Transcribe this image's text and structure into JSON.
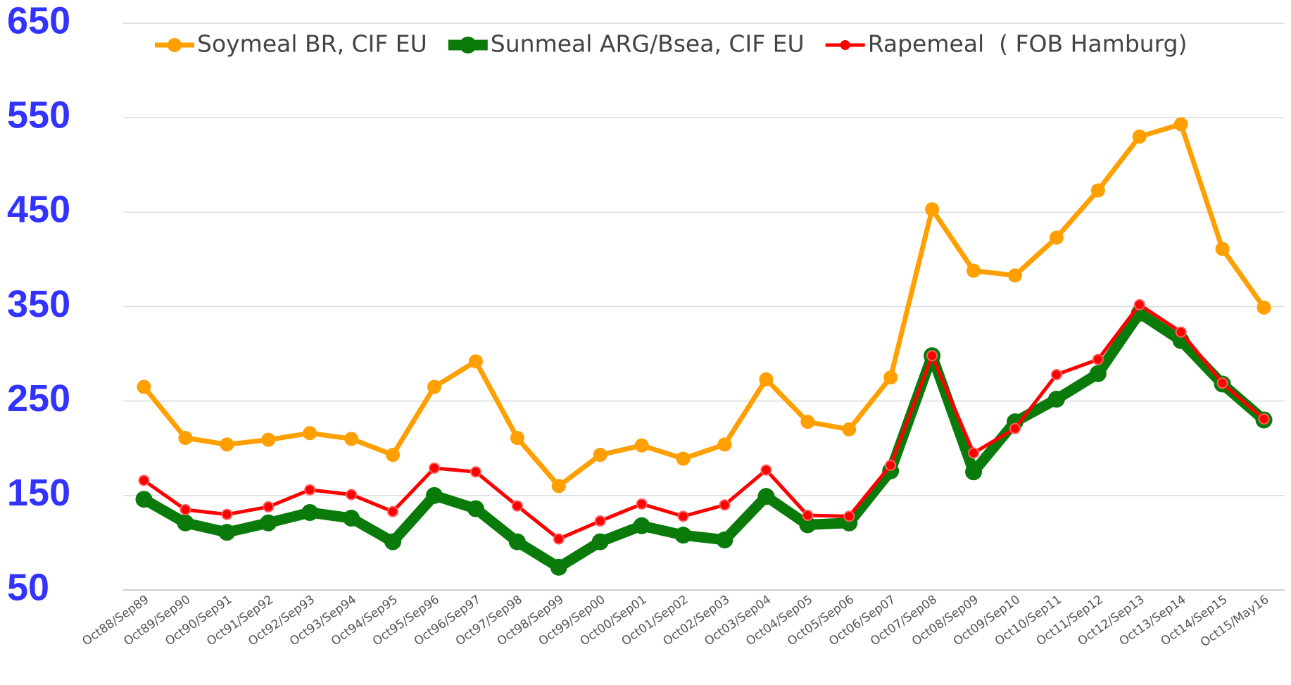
{
  "chart_data": {
    "type": "line",
    "categories": [
      "Oct88/Sep89",
      "Oct89/Sep90",
      "Oct90/Sep91",
      "Oct91/Sep92",
      "Oct92/Sep93",
      "Oct93/Sep94",
      "Oct94/Sep95",
      "Oct95/Sep96",
      "Oct96/Sep97",
      "Oct97/Sep98",
      "Oct98/Sep99",
      "Oct99/Sep00",
      "Oct00/Sep01",
      "Oct01/Sep02",
      "Oct02/Sep03",
      "Oct03/Sep04",
      "Oct04/Sep05",
      "Oct05/Sep06",
      "Oct06/Sep07",
      "Oct07/Sep08",
      "Oct08/Sep09",
      "Oct09/Sep10",
      "Oct10/Sep11",
      "Oct11/Sep12",
      "Oct12/Sep13",
      "Oct13/Sep14",
      "Oct14/Sep15",
      "Oct15/May16"
    ],
    "series": [
      {
        "name": "Soymeal BR, CIF EU",
        "color": "#ff9f00",
        "values": [
          265,
          211,
          204,
          209,
          216,
          210,
          193,
          265,
          292,
          211,
          160,
          193,
          203,
          189,
          204,
          273,
          228,
          220,
          275,
          453,
          388,
          383,
          423,
          473,
          530,
          543,
          411,
          349
        ]
      },
      {
        "name": "Sunmeal ARG/Bsea, CIF EU",
        "color": "#0a7a0a",
        "values": [
          146,
          121,
          111,
          121,
          132,
          126,
          101,
          150,
          136,
          101,
          74,
          101,
          118,
          108,
          103,
          149,
          119,
          121,
          176,
          298,
          175,
          228,
          252,
          279,
          343,
          314,
          268,
          230
        ]
      },
      {
        "name": "Rapemeal  ( FOB Hamburg)",
        "color": "#ff0000",
        "values": [
          166,
          135,
          130,
          138,
          156,
          151,
          133,
          179,
          175,
          139,
          104,
          123,
          141,
          128,
          140,
          177,
          129,
          128,
          182,
          298,
          195,
          221,
          278,
          294,
          352,
          323,
          269,
          231
        ]
      }
    ],
    "ylim": [
      50,
      650
    ],
    "yticks": [
      50,
      150,
      250,
      350,
      450,
      550,
      650
    ],
    "grid": true,
    "legend": "top"
  }
}
